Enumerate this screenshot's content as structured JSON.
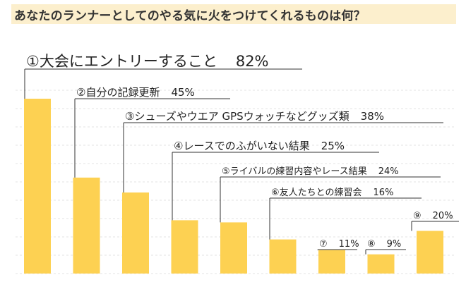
{
  "title": "あなたのランナーとしてのやる気に火をつけてくれるものは何？",
  "colors": {
    "bar": "#fdd152",
    "title_bg": "#fcefcd",
    "grid": "#e3e3e3",
    "text": "#222222"
  },
  "chart_data": {
    "type": "bar",
    "title": "あなたのランナーとしてのやる気に火をつけてくれるものは何？",
    "xlabel": "",
    "ylabel": "",
    "ylim": [
      0,
      100
    ],
    "grid": true,
    "categories": [
      "①大会にエントリーすること",
      "②自分の記録更新",
      "③シューズやウエア GPSウォッチなどグッズ類",
      "④レースでのふがいない結果",
      "⑤ライバルの練習内容やレース結果",
      "⑥友人たちとの練習会",
      "⑦",
      "⑧",
      "⑨"
    ],
    "values": [
      82,
      45,
      38,
      25,
      24,
      16,
      11,
      9,
      20
    ],
    "value_labels": [
      "82%",
      "45%",
      "38%",
      "25%",
      "24%",
      "16%",
      "11%",
      "9%",
      "20%"
    ]
  }
}
